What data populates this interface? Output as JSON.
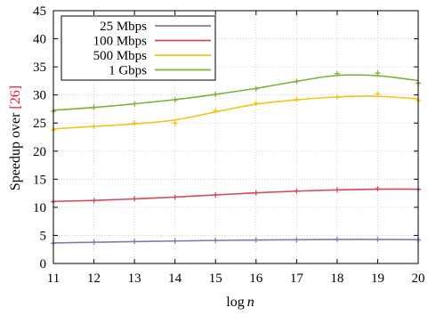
{
  "chart_data": {
    "type": "line",
    "xlabel": "log n",
    "xlabel_parts": {
      "prefix": "log",
      "var": "n"
    },
    "ylabel": "Speedup over [26]",
    "ylabel_parts": {
      "text": "Speedup over ",
      "cite": "[26]"
    },
    "xlim": [
      11,
      20
    ],
    "ylim": [
      0,
      45
    ],
    "x_ticks": [
      11,
      12,
      13,
      14,
      15,
      16,
      17,
      18,
      19,
      20
    ],
    "y_ticks": [
      0,
      5,
      10,
      15,
      20,
      25,
      30,
      35,
      40,
      45
    ],
    "grid": true,
    "legend_position": "top-left",
    "x": [
      11,
      12,
      13,
      14,
      15,
      16,
      17,
      18,
      19,
      20
    ],
    "series": [
      {
        "name": "25 Mbps",
        "color": "#7a7fb0",
        "values": [
          3.6,
          3.8,
          3.9,
          4.0,
          4.1,
          4.2,
          4.2,
          4.3,
          4.3,
          4.2
        ]
      },
      {
        "name": "100 Mbps",
        "color": "#d04a5e",
        "values": [
          11.0,
          11.2,
          11.5,
          11.8,
          12.2,
          12.6,
          12.9,
          13.1,
          13.3,
          13.2
        ]
      },
      {
        "name": "500 Mbps",
        "color": "#f0c419",
        "values": [
          23.8,
          24.4,
          25.0,
          25.0,
          27.2,
          28.5,
          29.2,
          29.6,
          30.2,
          29.0
        ]
      },
      {
        "name": "1 Gbps",
        "color": "#7fb034",
        "values": [
          27.1,
          27.8,
          28.4,
          29.1,
          30.1,
          31.1,
          32.4,
          33.8,
          33.9,
          32.1
        ]
      }
    ]
  }
}
